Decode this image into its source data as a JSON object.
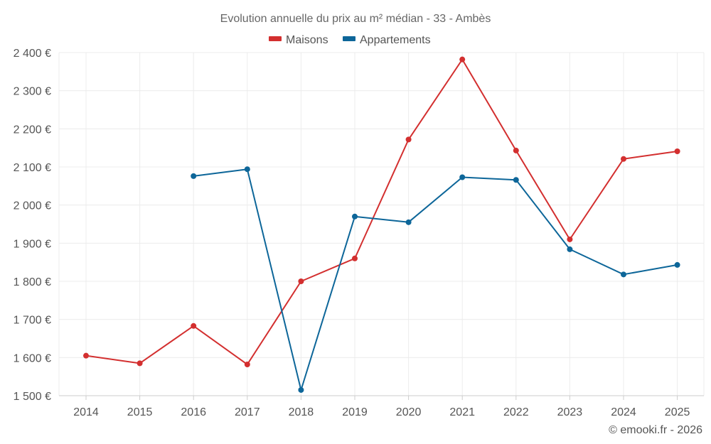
{
  "chart_data": {
    "type": "line",
    "title": "Evolution annuelle du prix au m² médian - 33 - Ambès",
    "categories": [
      "2014",
      "2015",
      "2016",
      "2017",
      "2018",
      "2019",
      "2020",
      "2021",
      "2022",
      "2023",
      "2024",
      "2025"
    ],
    "ylim": [
      1500,
      2400
    ],
    "yticks": [
      1500,
      1600,
      1700,
      1800,
      1900,
      2000,
      2100,
      2200,
      2300,
      2400
    ],
    "ytick_labels": [
      "1 500 €",
      "1 600 €",
      "1 700 €",
      "1 800 €",
      "1 900 €",
      "2 000 €",
      "2 100 €",
      "2 200 €",
      "2 300 €",
      "2 400 €"
    ],
    "grid": true,
    "legend_position": "top-center",
    "series": [
      {
        "name": "Maisons",
        "color": "#d32f2f",
        "values": [
          1605,
          1585,
          1683,
          1582,
          1800,
          1860,
          2172,
          2382,
          2143,
          1910,
          2121,
          2141
        ]
      },
      {
        "name": "Appartements",
        "color": "#0d6699",
        "values": [
          null,
          null,
          2076,
          2094,
          1515,
          1970,
          1955,
          2073,
          2066,
          1884,
          1818,
          1843
        ]
      }
    ]
  },
  "credit": "© emooki.fr - 2026"
}
